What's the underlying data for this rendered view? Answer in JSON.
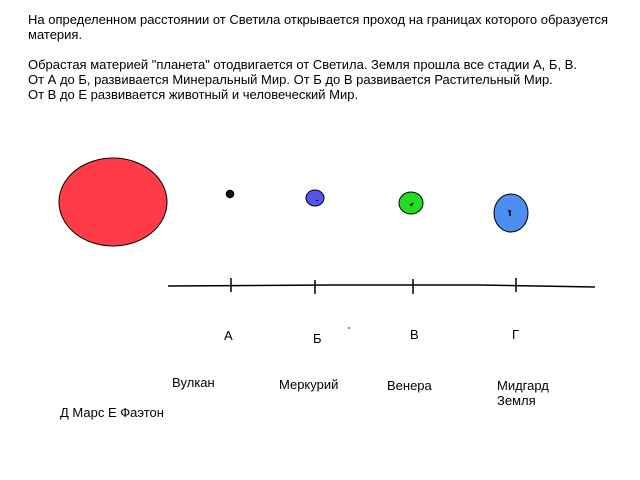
{
  "intro": {
    "line1": "На определенном расстоянии от Светила открывается проход на границах которого образуется",
    "line2": "материя."
  },
  "description": {
    "line1": "Обрастая материей \"планета\" отодвигается от Светила. Земля прошла все стадии А, Б, В.",
    "line2": "От А до Б, развивается Минеральный Мир. От Б до В развивается Растительный Мир.",
    "line3": "От В до Е развивается животный и человеческий Мир."
  },
  "colors": {
    "sun": "#ff3b47",
    "planet_a": "#111111",
    "planet_b": "#5555ee",
    "planet_c": "#22dd22",
    "planet_d": "#4c8ff0"
  },
  "stages": [
    {
      "letter": "А",
      "planet": "Вулкан"
    },
    {
      "letter": "Б",
      "planet": "Меркурий"
    },
    {
      "letter": "В",
      "planet": "Венера"
    },
    {
      "letter": "Г",
      "planet": "Мидгард",
      "planet2": "Земля"
    }
  ],
  "footer": "Д Марс Е Фаэтон"
}
